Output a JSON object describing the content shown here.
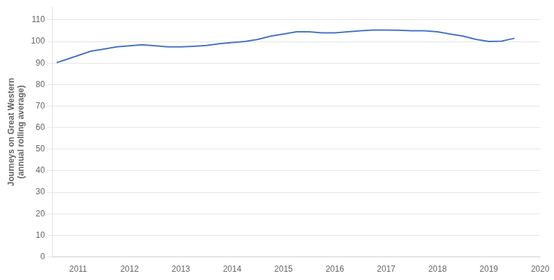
{
  "chart_data": {
    "type": "line",
    "ylabel": "Journeys on Great Western\n(annual rolling average)",
    "x": [
      2010.58,
      2010.75,
      2011.0,
      2011.25,
      2011.5,
      2011.75,
      2012.0,
      2012.25,
      2012.5,
      2012.75,
      2013.0,
      2013.25,
      2013.5,
      2013.75,
      2014.0,
      2014.25,
      2014.5,
      2014.75,
      2015.0,
      2015.25,
      2015.5,
      2015.75,
      2016.0,
      2016.25,
      2016.5,
      2016.75,
      2017.0,
      2017.25,
      2017.5,
      2017.75,
      2018.0,
      2018.25,
      2018.5,
      2018.75,
      2019.0,
      2019.25,
      2019.5
    ],
    "values": [
      90.2,
      91.5,
      93.5,
      95.5,
      96.5,
      97.5,
      98.0,
      98.5,
      98.0,
      97.5,
      97.5,
      97.8,
      98.2,
      99.0,
      99.5,
      100.0,
      101.0,
      102.5,
      103.5,
      104.5,
      104.5,
      104.0,
      104.0,
      104.5,
      105.0,
      105.3,
      105.3,
      105.2,
      105.0,
      105.0,
      104.5,
      103.5,
      102.5,
      101.0,
      100.0,
      100.2,
      101.5
    ],
    "color": "#4472C4",
    "xlim": [
      2010.5,
      2020.0
    ],
    "xticks": [
      2011,
      2012,
      2013,
      2014,
      2015,
      2016,
      2017,
      2018,
      2019,
      2020
    ],
    "ylim": [
      0,
      116
    ],
    "yticks": [
      0,
      10,
      20,
      30,
      40,
      50,
      60,
      70,
      80,
      90,
      100,
      110
    ],
    "grid": "y"
  }
}
